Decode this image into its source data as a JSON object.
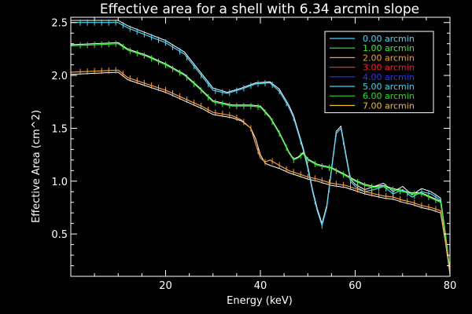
{
  "chart_data": {
    "type": "line",
    "title": "Effective area for a shell with 6.34 arcmin slope",
    "xlabel": "Energy (keV)",
    "ylabel": "Effective Area (cm^2)",
    "xlim": [
      0,
      80
    ],
    "ylim": [
      0.1,
      2.55
    ],
    "x_ticks": [
      20,
      40,
      60,
      80
    ],
    "x_tick_labels": [
      "20",
      "40",
      "60",
      "80"
    ],
    "y_ticks": [
      0.5,
      1.0,
      1.5,
      2.0,
      2.5
    ],
    "y_tick_labels": [
      "0.5",
      "1.0",
      "1.5",
      "2.0",
      "2.5"
    ],
    "grid": false,
    "legend_position": "top-right",
    "series": [
      {
        "name": "0.00 arcmin",
        "color": "#4fd4f5",
        "x": [
          0,
          10,
          12,
          16,
          20,
          24,
          27,
          30,
          33,
          36,
          39,
          42,
          44,
          46,
          47,
          48,
          49,
          50,
          51,
          52,
          53,
          54,
          55,
          56,
          57,
          58,
          59,
          60,
          62,
          64,
          66,
          68,
          70,
          72,
          74,
          76,
          78,
          79,
          80
        ],
        "y": [
          2.5,
          2.5,
          2.45,
          2.38,
          2.31,
          2.2,
          2.03,
          1.86,
          1.83,
          1.87,
          1.92,
          1.93,
          1.85,
          1.7,
          1.6,
          1.45,
          1.3,
          1.12,
          0.9,
          0.72,
          0.58,
          0.75,
          1.1,
          1.45,
          1.5,
          1.25,
          1.0,
          0.95,
          0.9,
          0.92,
          0.95,
          0.88,
          0.92,
          0.85,
          0.9,
          0.88,
          0.82,
          0.5,
          0.15
        ]
      },
      {
        "name": "1.00 arcmin",
        "color": "#33ee33",
        "x": [
          0,
          10,
          12,
          16,
          20,
          24,
          27,
          30,
          34,
          38,
          40,
          42,
          44,
          46,
          47,
          48,
          49,
          50,
          52,
          55,
          58,
          60,
          62,
          64,
          66,
          68,
          70,
          72,
          74,
          76,
          78,
          79,
          80
        ],
        "y": [
          2.28,
          2.3,
          2.24,
          2.18,
          2.1,
          2.0,
          1.88,
          1.75,
          1.71,
          1.71,
          1.7,
          1.6,
          1.45,
          1.27,
          1.2,
          1.22,
          1.26,
          1.2,
          1.15,
          1.12,
          1.05,
          1.0,
          0.96,
          0.94,
          0.95,
          0.92,
          0.9,
          0.88,
          0.88,
          0.84,
          0.8,
          0.5,
          0.15
        ]
      },
      {
        "name": "2.00 arcmin",
        "color": "#f0a040",
        "x": [
          0,
          10,
          12,
          16,
          20,
          24,
          28,
          30,
          34,
          36,
          38,
          39,
          40,
          41,
          42,
          44,
          46,
          48,
          50,
          52,
          55,
          58,
          60,
          62,
          64,
          66,
          68,
          70,
          72,
          74,
          76,
          78,
          79,
          80
        ],
        "y": [
          2.03,
          2.05,
          1.98,
          1.92,
          1.86,
          1.78,
          1.7,
          1.65,
          1.62,
          1.58,
          1.5,
          1.35,
          1.22,
          1.18,
          1.2,
          1.15,
          1.1,
          1.07,
          1.04,
          1.02,
          0.98,
          0.96,
          0.93,
          0.9,
          0.88,
          0.86,
          0.85,
          0.82,
          0.8,
          0.77,
          0.75,
          0.72,
          0.45,
          0.12
        ]
      },
      {
        "name": "3.00 arcmin",
        "color": "#ff2020",
        "x": [],
        "y": []
      },
      {
        "name": "4.00 arcmin",
        "color": "#2b35ff",
        "x": [],
        "y": []
      },
      {
        "name": "5.00 arcmin",
        "color": "#3ad8f2",
        "x": [],
        "y": []
      },
      {
        "name": "6.00 arcmin",
        "color": "#22dd22",
        "x": [],
        "y": []
      },
      {
        "name": "7.00 arcmin",
        "color": "#f0c020",
        "x": [],
        "y": []
      }
    ],
    "reference_lines": [
      {
        "color": "#ffffff",
        "x": [
          0,
          10,
          12,
          16,
          20,
          24,
          27,
          30,
          33,
          36,
          39,
          42,
          44,
          46,
          47,
          48,
          49,
          50,
          51,
          52,
          53,
          54,
          55,
          56,
          57,
          58,
          59,
          60,
          62,
          64,
          66,
          68,
          70,
          72,
          74,
          76,
          78,
          79,
          80
        ],
        "y": [
          2.52,
          2.52,
          2.47,
          2.4,
          2.33,
          2.22,
          2.05,
          1.88,
          1.84,
          1.88,
          1.93,
          1.94,
          1.87,
          1.72,
          1.62,
          1.47,
          1.32,
          1.14,
          0.92,
          0.74,
          0.6,
          0.77,
          1.12,
          1.47,
          1.52,
          1.27,
          1.02,
          0.97,
          0.92,
          0.95,
          0.98,
          0.9,
          0.95,
          0.87,
          0.93,
          0.9,
          0.84,
          0.52,
          0.15
        ]
      },
      {
        "color": "#ffffff",
        "x": [
          0,
          10,
          12,
          16,
          20,
          24,
          27,
          30,
          34,
          38,
          40,
          42,
          44,
          46,
          47,
          48,
          49,
          50,
          52,
          55,
          58,
          60,
          62,
          64,
          66,
          68,
          70,
          72,
          74,
          76,
          78,
          79,
          80
        ],
        "y": [
          2.29,
          2.31,
          2.25,
          2.19,
          2.11,
          2.01,
          1.89,
          1.76,
          1.72,
          1.72,
          1.71,
          1.61,
          1.46,
          1.28,
          1.21,
          1.23,
          1.27,
          1.21,
          1.16,
          1.13,
          1.06,
          1.01,
          0.97,
          0.95,
          0.96,
          0.93,
          0.91,
          0.89,
          0.89,
          0.85,
          0.81,
          0.51,
          0.15
        ]
      },
      {
        "color": "#ffffff",
        "x": [
          0,
          10,
          12,
          16,
          20,
          24,
          28,
          30,
          34,
          36,
          38,
          39,
          40,
          41,
          42,
          44,
          46,
          48,
          50,
          52,
          55,
          58,
          60,
          62,
          64,
          66,
          68,
          70,
          72,
          74,
          76,
          78,
          79,
          80
        ],
        "y": [
          2.01,
          2.03,
          1.96,
          1.9,
          1.84,
          1.76,
          1.68,
          1.63,
          1.6,
          1.57,
          1.5,
          1.4,
          1.25,
          1.17,
          1.15,
          1.12,
          1.08,
          1.05,
          1.02,
          1.0,
          0.96,
          0.94,
          0.91,
          0.88,
          0.86,
          0.84,
          0.83,
          0.8,
          0.78,
          0.75,
          0.73,
          0.7,
          0.43,
          0.12
        ]
      }
    ]
  }
}
